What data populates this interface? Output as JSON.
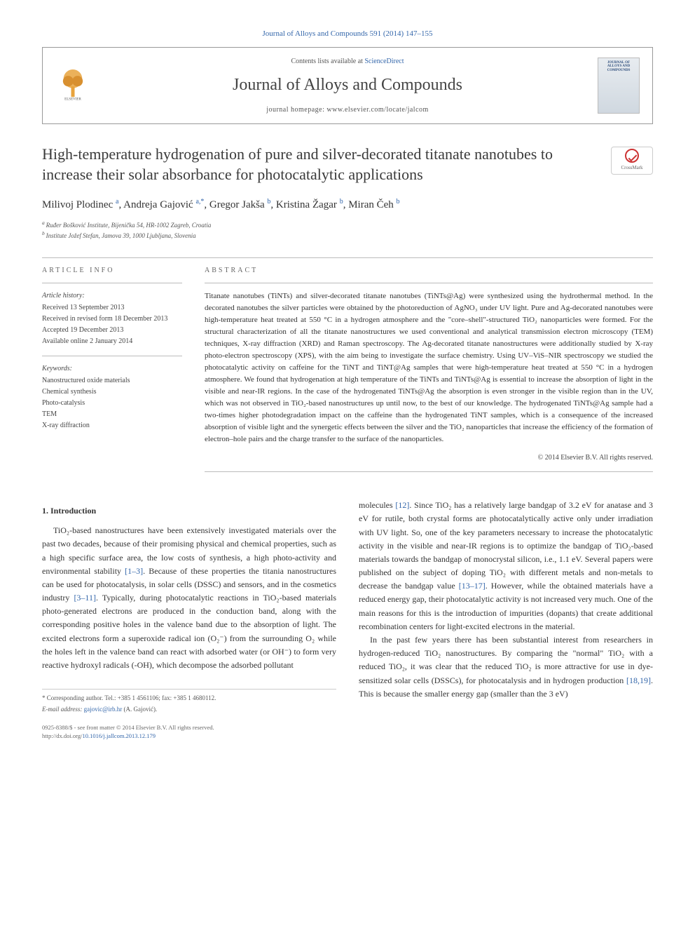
{
  "journal_ref": "Journal of Alloys and Compounds 591 (2014) 147–155",
  "header": {
    "contents_prefix": "Contents lists available at ",
    "contents_link": "ScienceDirect",
    "journal_name": "Journal of Alloys and Compounds",
    "homepage_prefix": "journal homepage: ",
    "homepage_url": "www.elsevier.com/locate/jalcom",
    "cover_text_top": "JOURNAL OF",
    "cover_text_main": "ALLOYS AND COMPOUNDS"
  },
  "crossmark_label": "CrossMark",
  "title": "High-temperature hydrogenation of pure and silver-decorated titanate nanotubes to increase their solar absorbance for photocatalytic applications",
  "authors": [
    {
      "name": "Milivoj Plodinec",
      "sup": "a"
    },
    {
      "name": "Andreja Gajović",
      "sup": "a,*"
    },
    {
      "name": "Gregor Jakša",
      "sup": "b"
    },
    {
      "name": "Kristina Žagar",
      "sup": "b"
    },
    {
      "name": "Miran Čeh",
      "sup": "b"
    }
  ],
  "affiliations": [
    {
      "sup": "a",
      "text": "Ruđer Bošković Institute, Bijenička 54, HR-1002 Zagreb, Croatia"
    },
    {
      "sup": "b",
      "text": "Institute Jožef Stefan, Jamova 39, 1000 Ljubljana, Slovenia"
    }
  ],
  "article_info": {
    "heading": "ARTICLE INFO",
    "history_heading": "Article history:",
    "history": [
      "Received 13 September 2013",
      "Received in revised form 18 December 2013",
      "Accepted 19 December 2013",
      "Available online 2 January 2014"
    ],
    "keywords_heading": "Keywords:",
    "keywords": [
      "Nanostructured oxide materials",
      "Chemical synthesis",
      "Photo-catalysis",
      "TEM",
      "X-ray diffraction"
    ]
  },
  "abstract": {
    "heading": "ABSTRACT",
    "text": "Titanate nanotubes (TiNTs) and silver-decorated titanate nanotubes (TiNTs@Ag) were synthesized using the hydrothermal method. In the decorated nanotubes the silver particles were obtained by the photoreduction of AgNO₃ under UV light. Pure and Ag-decorated nanotubes were high-temperature heat treated at 550 °C in a hydrogen atmosphere and the \"core–shell\"-structured TiO₂ nanoparticles were formed. For the structural characterization of all the titanate nanostructures we used conventional and analytical transmission electron microscopy (TEM) techniques, X-ray diffraction (XRD) and Raman spectroscopy. The Ag-decorated titanate nanostructures were additionally studied by X-ray photo-electron spectroscopy (XPS), with the aim being to investigate the surface chemistry. Using UV–ViS–NIR spectroscopy we studied the photocatalytic activity on caffeine for the TiNT and TiNT@Ag samples that were high-temperature heat treated at 550 °C in a hydrogen atmosphere. We found that hydrogenation at high temperature of the TiNTs and TiNTs@Ag is essential to increase the absorption of light in the visible and near-IR regions. In the case of the hydrogenated TiNTs@Ag the absorption is even stronger in the visible region than in the UV, which was not observed in TiO₂-based nanostructures up until now, to the best of our knowledge. The hydrogenated TiNTs@Ag sample had a two-times higher photodegradation impact on the caffeine than the hydrogenated TiNT samples, which is a consequence of the increased absorption of visible light and the synergetic effects between the silver and the TiO₂ nanoparticles that increase the efficiency of the formation of electron–hole pairs and the charge transfer to the surface of the nanoparticles.",
    "copyright": "© 2014 Elsevier B.V. All rights reserved."
  },
  "intro": {
    "heading": "1. Introduction",
    "col1_p1_a": "TiO₂-based nanostructures have been extensively investigated materials over the past two decades, because of their promising physical and chemical properties, such as a high specific surface area, the low costs of synthesis, a high photo-activity and environmental stability ",
    "col1_ref1": "[1–3]",
    "col1_p1_b": ". Because of these properties the titania nanostructures can be used for photocatalysis, in solar cells (DSSC) and sensors, and in the cosmetics industry ",
    "col1_ref2": "[3–11]",
    "col1_p1_c": ". Typically, during photocatalytic reactions in TiO₂-based materials photo-generated electrons are produced in the conduction band, along with the corresponding positive holes in the valence band due to the absorption of light. The excited electrons form a superoxide radical ion (O₂⁻) from the surrounding O₂ while the holes left in the valence band can react with adsorbed water (or OH⁻) to form very reactive hydroxyl radicals (-OH), which decompose the adsorbed pollutant",
    "col2_p1_a": "molecules ",
    "col2_ref1": "[12]",
    "col2_p1_b": ". Since TiO₂ has a relatively large bandgap of 3.2 eV for anatase and 3 eV for rutile, both crystal forms are photocatalytically active only under irradiation with UV light. So, one of the key parameters necessary to increase the photocatalytic activity in the visible and near-IR regions is to optimize the bandgap of TiO₂-based materials towards the bandgap of monocrystal silicon, i.e., 1.1 eV. Several papers were published on the subject of doping TiO₂ with different metals and non-metals to decrease the bandgap value ",
    "col2_ref2": "[13–17]",
    "col2_p1_c": ". However, while the obtained materials have a reduced energy gap, their photocatalytic activity is not increased very much. One of the main reasons for this is the introduction of impurities (dopants) that create additional recombination centers for light-excited electrons in the material.",
    "col2_p2_a": "In the past few years there has been substantial interest from researchers in hydrogen-reduced TiO₂ nanostructures. By comparing the \"normal\" TiO₂ with a reduced TiO₂, it was clear that the reduced TiO₂ is more attractive for use in dye-sensitized solar cells (DSSCs), for photocatalysis and in hydrogen production ",
    "col2_ref3": "[18,19]",
    "col2_p2_b": ". This is because the smaller energy gap (smaller than the 3 eV)"
  },
  "footnote": {
    "corresponding": "* Corresponding author. Tel.: +385 1 4561106; fax: +385 1 4680112.",
    "email_label": "E-mail address: ",
    "email": "gajovic@irb.hr",
    "email_suffix": " (A. Gajović)."
  },
  "footer": {
    "issn_line": "0925-8388/$ - see front matter © 2014 Elsevier B.V. All rights reserved.",
    "doi_label": "http://dx.doi.org/",
    "doi": "10.1016/j.jallcom.2013.12.179"
  },
  "colors": {
    "link": "#3366aa",
    "text": "#333333",
    "muted": "#666666",
    "border": "#bbbbbb"
  }
}
